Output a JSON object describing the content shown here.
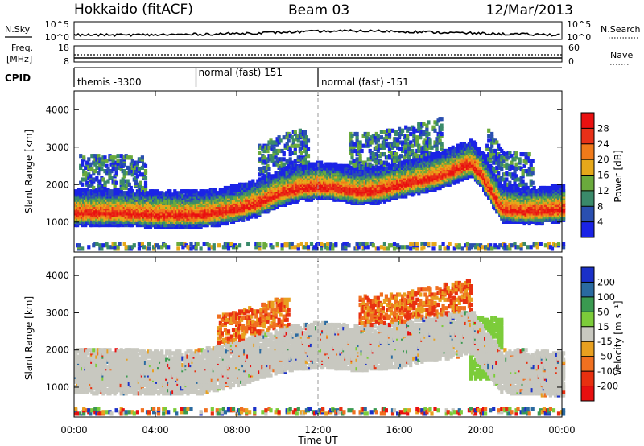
{
  "header": {
    "station": "Hokkaido (fitACF)",
    "beam": "Beam 03",
    "date": "12/Mar/2013"
  },
  "noise_panel": {
    "left_label": "N.Sky",
    "right_label": "N.Search",
    "left_ticks": [
      "10^5",
      "10^0"
    ],
    "right_ticks": [
      "10^5",
      "10^0"
    ]
  },
  "freq_panel": {
    "left_label_1": "Freq.",
    "left_label_2": "[MHz]",
    "right_label": "Nave",
    "left_ticks": [
      "18",
      "8"
    ],
    "right_ticks": [
      "60",
      "0"
    ]
  },
  "cpid_panel": {
    "label": "CPID",
    "modes": [
      {
        "start_hour": 0.0,
        "name": "themis -3300"
      },
      {
        "start_hour": 6.0,
        "name": "normal (fast) 151"
      },
      {
        "start_hour": 12.0,
        "name": "normal (fast) -151"
      }
    ]
  },
  "x_axis": {
    "label": "Time UT",
    "range_hours": [
      0,
      24
    ],
    "ticks": [
      "00:00",
      "04:00",
      "08:00",
      "12:00",
      "16:00",
      "20:00",
      "00:00"
    ]
  },
  "power_panel": {
    "ylabel": "Slant Range [km]",
    "yticks": [
      "1000",
      "2000",
      "3000",
      "4000"
    ],
    "colorbar_label": "Power [dB]",
    "colorbar_ticks": [
      "4",
      "8",
      "12",
      "16",
      "20",
      "24",
      "28"
    ],
    "colors": [
      "#1a23e6",
      "#2a4fb0",
      "#3a8a6a",
      "#6aaa3c",
      "#e6a81a",
      "#f07a1a",
      "#e83018",
      "#ea1010"
    ]
  },
  "velocity_panel": {
    "ylabel": "Slant Range [km]",
    "yticks": [
      "1000",
      "2000",
      "3000",
      "4000"
    ],
    "colorbar_label": "Velocity [m s⁻¹]",
    "colorbar_ticks": [
      "200",
      "100",
      "50",
      "15",
      "-15",
      "-50",
      "-100",
      "-200"
    ],
    "colors": [
      "#1a30c8",
      "#2a6aa0",
      "#3a9a50",
      "#7ccc3a",
      "#c8c8c0",
      "#e8a020",
      "#f07020",
      "#e83010",
      "#e81010"
    ],
    "ground_scatter_color": "#c8c8c0"
  },
  "chart_data": {
    "type": "heatmap",
    "x_unit": "hours UT",
    "y_unit": "km",
    "xlim": [
      0,
      24
    ],
    "ylim": [
      200,
      4500
    ],
    "power_main_band": {
      "x": [
        0,
        2,
        4,
        5,
        6,
        7,
        8,
        9,
        10,
        11,
        12,
        13,
        14,
        15,
        16,
        17,
        18,
        19,
        19.5,
        20,
        20.5,
        21,
        22,
        23,
        24
      ],
      "range_center_km": [
        1250,
        1250,
        1200,
        1180,
        1200,
        1250,
        1350,
        1500,
        1750,
        1900,
        1950,
        1900,
        1800,
        1850,
        2000,
        2100,
        2250,
        2450,
        2550,
        2250,
        1800,
        1350,
        1300,
        1300,
        1350
      ],
      "peak_power_db": 28
    },
    "velocity_ground_scatter_band": {
      "x": [
        0,
        4,
        6,
        8,
        10,
        12,
        14,
        16,
        18,
        19.5,
        21,
        24
      ],
      "range_center_km": [
        1400,
        1350,
        1350,
        1600,
        1950,
        2100,
        2000,
        2100,
        2300,
        2450,
        1400,
        1300
      ],
      "velocity_m_s": 0
    },
    "vertical_markers_hours": [
      6.0,
      12.0
    ]
  }
}
